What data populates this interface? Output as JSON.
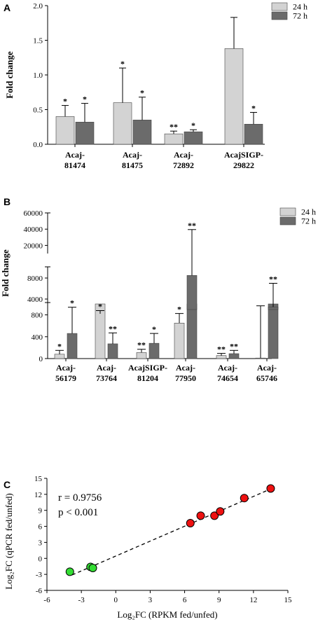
{
  "colors": {
    "light_bar": "#d3d3d3",
    "dark_bar": "#6b6b6b",
    "red_point": "#ee1111",
    "green_point": "#33dd33"
  },
  "chart_data": [
    {
      "panel": "A",
      "type": "bar",
      "ylabel": "Fold change",
      "ylim": [
        0,
        2.0
      ],
      "yticks": [
        "0.0",
        "0.5",
        "1.0",
        "1.5",
        "2.0"
      ],
      "categories": [
        [
          "Acaj-",
          "81474"
        ],
        [
          "Acaj-",
          "81475"
        ],
        [
          "Acaj-",
          "72892"
        ],
        [
          "AcajSIGP-",
          "29822"
        ]
      ],
      "legend": [
        "24 h",
        "72 h"
      ],
      "series": [
        {
          "name": "24 h",
          "values": [
            0.4,
            0.6,
            0.15,
            1.38
          ],
          "errors": [
            0.16,
            0.5,
            0.04,
            0.45
          ],
          "sig": [
            "*",
            "*",
            "**",
            ""
          ]
        },
        {
          "name": "72 h",
          "values": [
            0.32,
            0.35,
            0.18,
            0.29
          ],
          "errors": [
            0.27,
            0.33,
            0.03,
            0.17
          ],
          "sig": [
            "*",
            "*",
            "*",
            "*"
          ]
        }
      ]
    },
    {
      "panel": "B",
      "type": "bar",
      "ylabel": "Fold change",
      "broken_axis": true,
      "segments": [
        {
          "range": [
            0,
            1000
          ],
          "ticks": [
            "0",
            "400",
            "800"
          ]
        },
        {
          "range": [
            2000,
            10000
          ],
          "ticks": [
            "4000",
            "8000"
          ]
        },
        {
          "range": [
            10000,
            60000
          ],
          "ticks": [
            "20000",
            "40000",
            "60000"
          ]
        }
      ],
      "categories": [
        [
          "Acaj-",
          "56179"
        ],
        [
          "Acaj-",
          "73764"
        ],
        [
          "AcajSIGP-",
          "81204"
        ],
        [
          "Acaj-",
          "77950"
        ],
        [
          "Acaj-",
          "74654"
        ],
        [
          "Acaj-",
          "65746"
        ]
      ],
      "legend": [
        "24 h",
        "72 h"
      ],
      "series": [
        {
          "name": "24 h",
          "values": [
            80,
            1200,
            110,
            650,
            55,
            10
          ],
          "errors": [
            70,
            600,
            60,
            600,
            40,
            2700
          ],
          "sig": [
            "*",
            "*",
            "**",
            "*",
            "**",
            ""
          ]
        },
        {
          "name": "72 h",
          "values": [
            460,
            270,
            280,
            8500,
            90,
            2500
          ],
          "errors": [
            480,
            200,
            180,
            31000,
            60,
            4500
          ],
          "sig": [
            "*",
            "**",
            "*",
            "**",
            "**",
            "**"
          ]
        }
      ]
    },
    {
      "panel": "C",
      "type": "scatter",
      "xlabel": "Log₂FC (RPKM fed/unfed)",
      "ylabel": "Log₂FC (qPCR fed/unfed)",
      "xlim": [
        -6,
        15
      ],
      "ylim": [
        -6,
        15
      ],
      "xticks": [
        "-6",
        "-3",
        "0",
        "3",
        "6",
        "9",
        "12",
        "15"
      ],
      "yticks": [
        "-6",
        "-3",
        "0",
        "3",
        "6",
        "9",
        "12",
        "15"
      ],
      "r_text": "r = 0.9756",
      "p_text": "p < 0.001",
      "fit_line": {
        "x": [
          -3.8,
          13.6
        ],
        "y": [
          -3.1,
          13.1
        ]
      },
      "points": [
        {
          "x": -4.0,
          "y": -2.5,
          "group": "down"
        },
        {
          "x": -2.2,
          "y": -1.6,
          "group": "down"
        },
        {
          "x": -2.0,
          "y": -1.8,
          "group": "down"
        },
        {
          "x": 6.5,
          "y": 6.6,
          "group": "up"
        },
        {
          "x": 7.4,
          "y": 8.0,
          "group": "up"
        },
        {
          "x": 8.6,
          "y": 8.0,
          "group": "up"
        },
        {
          "x": 9.1,
          "y": 8.8,
          "group": "up"
        },
        {
          "x": 11.2,
          "y": 11.3,
          "group": "up"
        },
        {
          "x": 13.5,
          "y": 13.1,
          "group": "up"
        }
      ]
    }
  ]
}
